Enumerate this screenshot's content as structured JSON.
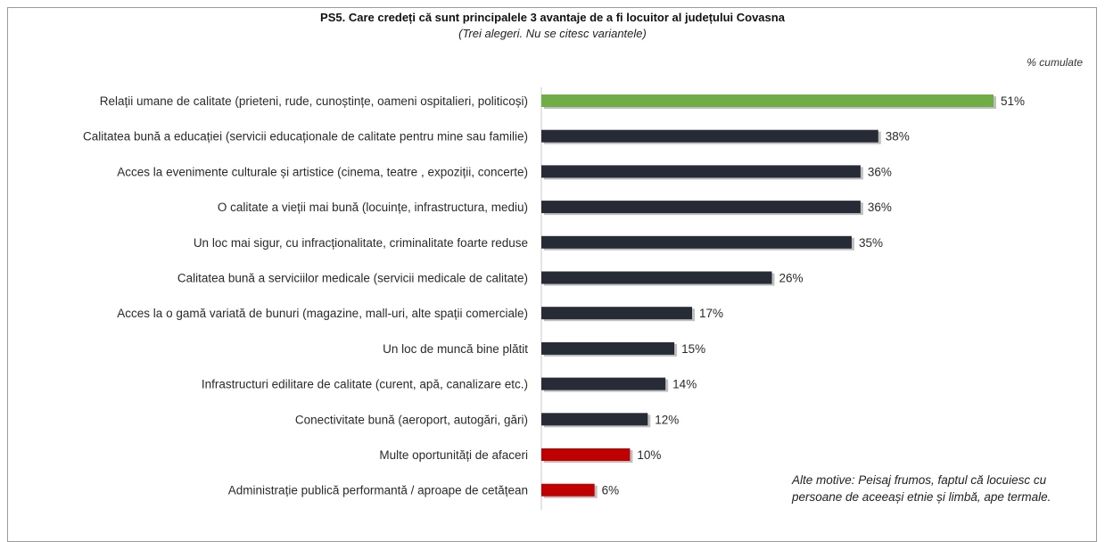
{
  "title": "PS5. Care credeți că sunt principalele 3 avantaje de a fi locuitor al județului Covasna",
  "subtitle": "(Trei alegeri. Nu se citesc variantele)",
  "unit_label": "% cumulate",
  "note": "Alte motive: Peisaj frumos, faptul că locuiesc cu persoane de aceeași etnie și limbă, ape termale.",
  "colors": {
    "highlight_top": "#70ad47",
    "default": "#262b36",
    "low": "#c00000"
  },
  "chart_data": {
    "type": "bar",
    "orientation": "horizontal",
    "categories": [
      "Relații umane de calitate (prieteni, rude, cunoștințe, oameni ospitalieri, politicoși)",
      "Calitatea bună a educației (servicii educaționale de calitate pentru mine sau familie)",
      "Acces la evenimente culturale și artistice (cinema, teatre , expoziții, concerte)",
      "O calitate a vieții mai bună (locuințe, infrastructura, mediu)",
      "Un loc mai sigur, cu infracționalitate, criminalitate foarte reduse",
      "Calitatea bună a serviciilor medicale (servicii medicale de calitate)",
      "Acces la o gamă variată de bunuri (magazine, mall-uri, alte spații comerciale)",
      "Un loc de muncă bine plătit",
      "Infrastructuri edilitare de calitate (curent, apă, canalizare etc.)",
      "Conectivitate bună (aeroport, autogări, gări)",
      "Multe oportunități de afaceri",
      "Administrație publică performantă / aproape de cetățean"
    ],
    "values": [
      51,
      38,
      36,
      36,
      35,
      26,
      17,
      15,
      14,
      12,
      10,
      6
    ],
    "value_labels": [
      "51%",
      "38%",
      "36%",
      "36%",
      "35%",
      "26%",
      "17%",
      "15%",
      "14%",
      "12%",
      "10%",
      "6%"
    ],
    "bar_colors": [
      "#70ad47",
      "#262b36",
      "#262b36",
      "#262b36",
      "#262b36",
      "#262b36",
      "#262b36",
      "#262b36",
      "#262b36",
      "#262b36",
      "#c00000",
      "#c00000"
    ],
    "xlim": [
      0,
      51
    ],
    "grid": false,
    "legend": "none"
  }
}
